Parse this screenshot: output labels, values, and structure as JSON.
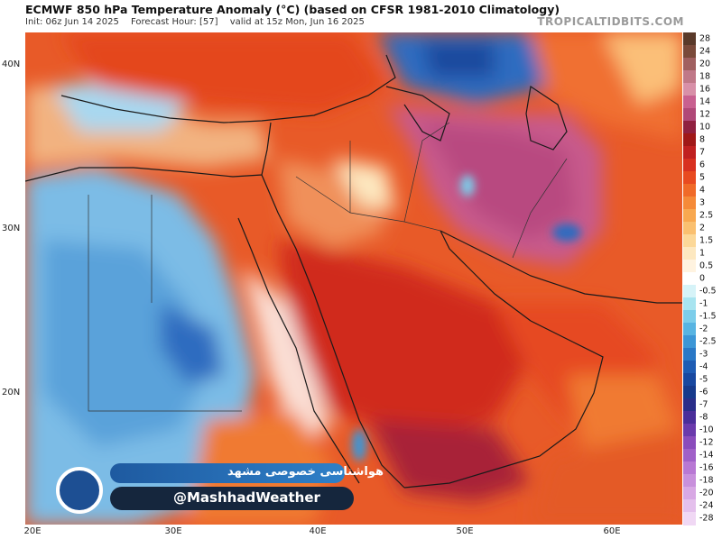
{
  "header": {
    "title": "ECMWF 850 hPa Temperature Anomaly (°C) (based on CFSR 1981-2010 Climatology)",
    "init": "Init: 06z Jun 14 2025",
    "forecast_hour": "Forecast Hour: [57]",
    "valid": "valid at 15z Mon, Jun 16 2025",
    "brand": "TROPICALTIDBITS.COM"
  },
  "axes": {
    "lat_labels": [
      "40N",
      "30N",
      "20N"
    ],
    "lon_labels": [
      "20E",
      "30E",
      "40E",
      "50E",
      "60E"
    ]
  },
  "colorbar": {
    "labels": [
      "28",
      "24",
      "20",
      "18",
      "16",
      "14",
      "12",
      "10",
      "8",
      "7",
      "6",
      "5",
      "4",
      "3",
      "2.5",
      "2",
      "1.5",
      "1",
      "0.5",
      "0",
      "-0.5",
      "-1",
      "-1.5",
      "-2",
      "-2.5",
      "-3",
      "-4",
      "-5",
      "-6",
      "-7",
      "-8",
      "-10",
      "-12",
      "-14",
      "-16",
      "-18",
      "-20",
      "-24",
      "-28"
    ],
    "colors": [
      "#5a3a2a",
      "#7a4a3a",
      "#a06060",
      "#c07888",
      "#d890a8",
      "#c86090",
      "#b04878",
      "#902040",
      "#a01818",
      "#c02020",
      "#d83020",
      "#e84a20",
      "#f06a28",
      "#f58a38",
      "#f8a850",
      "#fac070",
      "#fcd898",
      "#fde8c0",
      "#fff3e0",
      "#ffffff",
      "#d6f3f8",
      "#a8e4f0",
      "#7ccdea",
      "#58b4e2",
      "#3c96d6",
      "#2a78c6",
      "#1e5cb4",
      "#1848a0",
      "#163a8c",
      "#2a2e8a",
      "#4a2e9a",
      "#6a3aac",
      "#8a4cbc",
      "#a060c8",
      "#b878d4",
      "#c890dc",
      "#d8a8e4",
      "#e4c0ec",
      "#f0d8f4"
    ]
  },
  "watermark": {
    "line1": "هواشناسی خصوصی مشهد",
    "line2": "@MashhadWeather"
  }
}
